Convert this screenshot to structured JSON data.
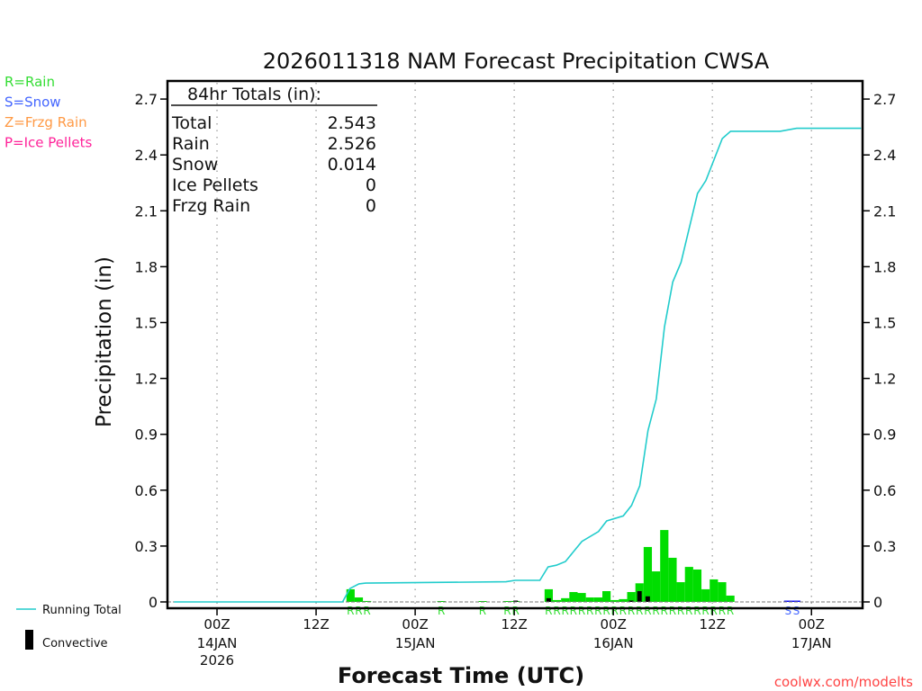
{
  "chart_data": {
    "type": "bar",
    "title": "2026011318 NAM Forecast Precipitation CWSA",
    "xlabel": "Forecast Time (UTC)",
    "ylabel": "Precipitation (in)",
    "ylim": [
      0,
      2.7
    ],
    "xlim_hours": [
      0,
      84
    ],
    "y_ticks": [
      "0",
      "0.3",
      "0.6",
      "0.9",
      "1.2",
      "1.5",
      "1.8",
      "2.1",
      "2.4",
      "2.7"
    ],
    "y_tick_values": [
      0,
      0.3,
      0.6,
      0.9,
      1.2,
      1.5,
      1.8,
      2.1,
      2.4,
      2.7
    ],
    "x_ticks": [
      {
        "hour": 6,
        "time": "00Z",
        "date": "14JAN",
        "year": "2026"
      },
      {
        "hour": 18,
        "time": "12Z"
      },
      {
        "hour": 30,
        "time": "00Z",
        "date": "15JAN"
      },
      {
        "hour": 42,
        "time": "12Z"
      },
      {
        "hour": 54,
        "time": "00Z",
        "date": "16JAN"
      },
      {
        "hour": 66,
        "time": "12Z"
      },
      {
        "hour": 78,
        "time": "00Z",
        "date": "17JAN"
      }
    ],
    "grid": "vertical dotted",
    "precip_type_legend": [
      {
        "label": "R=Rain",
        "color": "#33dd33"
      },
      {
        "label": "S=Snow",
        "color": "#4466ff"
      },
      {
        "label": "Z=Frzg Rain",
        "color": "#ff9944"
      },
      {
        "label": "P=Ice Pellets",
        "color": "#ff2299"
      }
    ],
    "series_legend": {
      "running_total": "Running Total",
      "convective": "Convective"
    },
    "totals": {
      "header": "84hr Totals (in):",
      "rows": [
        {
          "label": "Total",
          "value": "2.543"
        },
        {
          "label": "Rain",
          "value": "2.526"
        },
        {
          "label": "Snow",
          "value": "0.014"
        },
        {
          "label": "Ice Pellets",
          "value": "0"
        },
        {
          "label": "Frzg Rain",
          "value": "0"
        }
      ]
    },
    "hourly_precip": [
      {
        "hour": 22,
        "value": 0.068,
        "type": "R"
      },
      {
        "hour": 23,
        "value": 0.024,
        "type": "R"
      },
      {
        "hour": 24,
        "value": 0.005,
        "type": "R"
      },
      {
        "hour": 33,
        "value": 0.002,
        "type": "R"
      },
      {
        "hour": 38,
        "value": 0.002,
        "type": "R"
      },
      {
        "hour": 41,
        "value": 0.003,
        "type": "R"
      },
      {
        "hour": 42,
        "value": 0.005,
        "type": "R"
      },
      {
        "hour": 46,
        "value": 0.068,
        "type": "R"
      },
      {
        "hour": 47,
        "value": 0.01,
        "type": "R"
      },
      {
        "hour": 48,
        "value": 0.02,
        "type": "R"
      },
      {
        "hour": 49,
        "value": 0.053,
        "type": "R"
      },
      {
        "hour": 50,
        "value": 0.048,
        "type": "R"
      },
      {
        "hour": 51,
        "value": 0.024,
        "type": "R"
      },
      {
        "hour": 52,
        "value": 0.024,
        "type": "R"
      },
      {
        "hour": 53,
        "value": 0.058,
        "type": "R"
      },
      {
        "hour": 54,
        "value": 0.01,
        "type": "R"
      },
      {
        "hour": 55,
        "value": 0.015,
        "type": "R"
      },
      {
        "hour": 56,
        "value": 0.053,
        "type": "R"
      },
      {
        "hour": 57,
        "value": 0.1,
        "type": "R"
      },
      {
        "hour": 58,
        "value": 0.295,
        "type": "R"
      },
      {
        "hour": 59,
        "value": 0.164,
        "type": "R"
      },
      {
        "hour": 60,
        "value": 0.386,
        "type": "R"
      },
      {
        "hour": 61,
        "value": 0.237,
        "type": "R"
      },
      {
        "hour": 62,
        "value": 0.106,
        "type": "R"
      },
      {
        "hour": 63,
        "value": 0.188,
        "type": "R"
      },
      {
        "hour": 64,
        "value": 0.174,
        "type": "R"
      },
      {
        "hour": 65,
        "value": 0.068,
        "type": "R"
      },
      {
        "hour": 66,
        "value": 0.121,
        "type": "R"
      },
      {
        "hour": 67,
        "value": 0.106,
        "type": "R"
      },
      {
        "hour": 68,
        "value": 0.034,
        "type": "R"
      },
      {
        "hour": 75,
        "value": 0.007,
        "type": "S"
      },
      {
        "hour": 76,
        "value": 0.007,
        "type": "S"
      }
    ],
    "convective": [
      {
        "hour": 42,
        "value": 0.005
      },
      {
        "hour": 46,
        "value": 0.02
      },
      {
        "hour": 56,
        "value": 0.005
      },
      {
        "hour": 57,
        "value": 0.058
      },
      {
        "hour": 58,
        "value": 0.03
      }
    ],
    "running_total": [
      [
        0.8,
        0
      ],
      [
        21.2,
        0
      ],
      [
        22.1,
        0.072
      ],
      [
        23.2,
        0.097
      ],
      [
        24,
        0.101
      ],
      [
        41,
        0.108
      ],
      [
        42.1,
        0.116
      ],
      [
        45.1,
        0.116
      ],
      [
        46.1,
        0.188
      ],
      [
        47.1,
        0.197
      ],
      [
        48.2,
        0.217
      ],
      [
        50.2,
        0.325
      ],
      [
        52.2,
        0.378
      ],
      [
        53.2,
        0.435
      ],
      [
        55.2,
        0.462
      ],
      [
        56.2,
        0.518
      ],
      [
        57.2,
        0.623
      ],
      [
        58.2,
        0.921
      ],
      [
        59.2,
        1.09
      ],
      [
        60.2,
        1.477
      ],
      [
        61.2,
        1.718
      ],
      [
        62.2,
        1.823
      ],
      [
        64.2,
        2.193
      ],
      [
        65.2,
        2.262
      ],
      [
        67.2,
        2.488
      ],
      [
        68.2,
        2.527
      ],
      [
        74.2,
        2.527
      ],
      [
        76.2,
        2.543
      ],
      [
        84,
        2.543
      ]
    ],
    "colors": {
      "rain": "#00dd00",
      "snow": "#0000ff",
      "running_total": "#22cccc",
      "convective": "#000000",
      "credit": "#ff4444"
    }
  },
  "credit": "coolwx.com/modelts"
}
